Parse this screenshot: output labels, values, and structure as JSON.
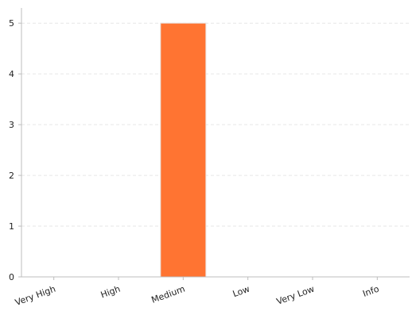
{
  "chart_data": {
    "type": "bar",
    "title": "",
    "xlabel": "",
    "ylabel": "",
    "categories": [
      "Very High",
      "High",
      "Medium",
      "Low",
      "Very Low",
      "Info"
    ],
    "values": [
      0,
      0,
      5,
      0,
      0,
      0
    ],
    "ylim": [
      0,
      5.3
    ],
    "yticks": [
      0,
      1,
      2,
      3,
      4,
      5
    ],
    "grid": true,
    "legend": "none",
    "bar_color": "#ff7432",
    "bar_stroke": "#e8e0dc",
    "grid_color": "#e6e6e6",
    "axis_color": "#bdbdbd"
  }
}
